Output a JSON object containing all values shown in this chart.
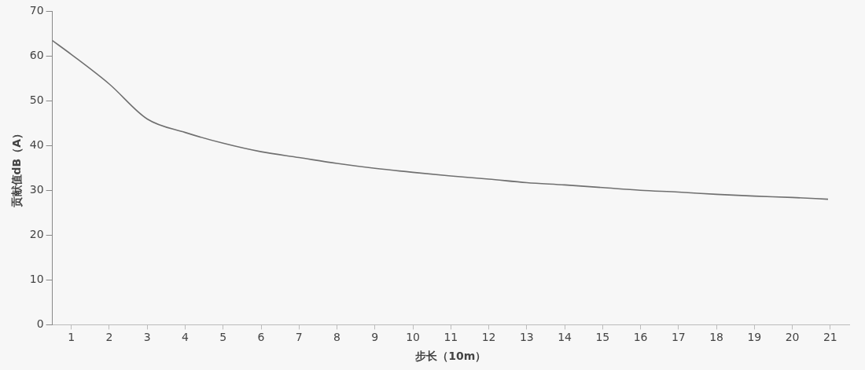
{
  "chart_data": {
    "type": "line",
    "xlabel": "步长（10m）",
    "ylabel": "贡献值dB（A）",
    "x": [
      0.5,
      1,
      2,
      3,
      4,
      5,
      6,
      7,
      8,
      9,
      10,
      11,
      12,
      13,
      14,
      15,
      16,
      17,
      18,
      19,
      20,
      20.94
    ],
    "series": [
      {
        "color": "#707070",
        "values": [
          63.4,
          60.3,
          53.7,
          45.9,
          42.9,
          40.5,
          38.6,
          37.3,
          36.0,
          34.9,
          34.0,
          33.2,
          32.5,
          31.7,
          31.2,
          30.6,
          30.0,
          29.6,
          29.1,
          28.7,
          28.4,
          28.0
        ]
      }
    ],
    "xlim": [
      0.5,
      21.5
    ],
    "xticks": [
      1,
      2,
      3,
      4,
      5,
      6,
      7,
      8,
      9,
      10,
      11,
      12,
      13,
      14,
      15,
      16,
      17,
      18,
      19,
      20,
      21
    ],
    "ylim": [
      0,
      70
    ],
    "yticks": [
      0,
      10,
      20,
      30,
      40,
      50,
      60,
      70
    ],
    "grid": false,
    "legend": false,
    "marker": "none",
    "line_style": "solid"
  }
}
